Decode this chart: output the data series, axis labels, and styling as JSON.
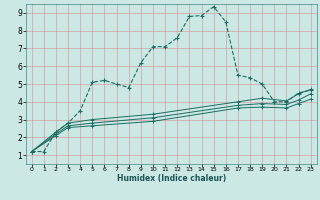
{
  "bg_color": "#cce8e4",
  "grid_color": "#d4a0a0",
  "line_color": "#1a6e64",
  "xlabel": "Humidex (Indice chaleur)",
  "xlim": [
    -0.5,
    23.5
  ],
  "ylim": [
    0.5,
    9.5
  ],
  "xticks": [
    0,
    1,
    2,
    3,
    4,
    5,
    6,
    7,
    8,
    9,
    10,
    11,
    12,
    13,
    14,
    15,
    16,
    17,
    18,
    19,
    20,
    21,
    22,
    23
  ],
  "yticks": [
    1,
    2,
    3,
    4,
    5,
    6,
    7,
    8,
    9
  ],
  "curve1_x": [
    0,
    1,
    2,
    3,
    4,
    5,
    6,
    7,
    8,
    9,
    10,
    11,
    12,
    13,
    14,
    15,
    16,
    17,
    18,
    19,
    20,
    21,
    22,
    23
  ],
  "curve1_y": [
    1.2,
    1.2,
    2.3,
    2.8,
    3.5,
    5.1,
    5.2,
    5.0,
    4.8,
    6.2,
    7.1,
    7.1,
    7.6,
    8.8,
    8.85,
    9.35,
    8.5,
    5.5,
    5.35,
    5.0,
    4.0,
    4.0,
    4.5,
    4.65
  ],
  "curve2_x": [
    0,
    2,
    3,
    5,
    10,
    17,
    19,
    21,
    22,
    23
  ],
  "curve2_y": [
    1.2,
    2.3,
    2.8,
    3.0,
    3.3,
    4.0,
    4.2,
    4.05,
    4.45,
    4.7
  ],
  "curve3_x": [
    0,
    2,
    3,
    5,
    10,
    17,
    19,
    21,
    22,
    23
  ],
  "curve3_y": [
    1.2,
    2.2,
    2.65,
    2.8,
    3.1,
    3.8,
    3.9,
    3.85,
    4.1,
    4.45
  ],
  "curve4_x": [
    0,
    2,
    3,
    5,
    10,
    17,
    19,
    21,
    22,
    23
  ],
  "curve4_y": [
    1.2,
    2.1,
    2.55,
    2.65,
    2.9,
    3.65,
    3.7,
    3.65,
    3.9,
    4.15
  ]
}
